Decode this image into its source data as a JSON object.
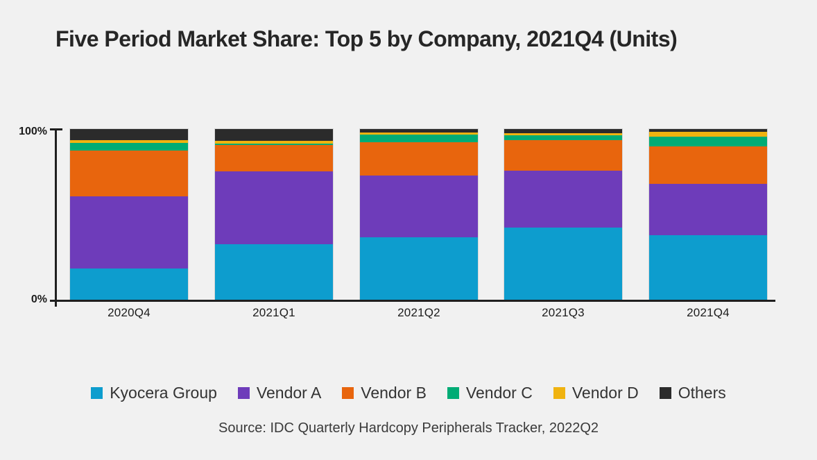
{
  "title": "Five Period Market Share: Top 5 by Company, 2021Q4 (Units)",
  "source": "Source: IDC Quarterly Hardcopy Peripherals Tracker, 2022Q2",
  "colors": {
    "background": "#f1f1f1",
    "axis": "#1f1f1f",
    "title_text": "#262626",
    "kyocera_blue": "#0d9dce",
    "vendor_a_purple": "#6e3cba",
    "vendor_b_orange": "#e8650d",
    "vendor_c_green": "#00ac75",
    "vendor_d_yellow": "#f0b310",
    "others_black": "#2b2b2b"
  },
  "chart_data": {
    "type": "bar",
    "stacked": true,
    "title": "Five Period Market Share: Top 5 by Company, 2021Q4 (Units)",
    "categories": [
      "2020Q4",
      "2021Q1",
      "2021Q2",
      "2021Q3",
      "2021Q4"
    ],
    "series": [
      {
        "name": "Kyocera Group",
        "color": "#0d9dce",
        "values": [
          18.6,
          32.6,
          36.8,
          42.4,
          37.9
        ]
      },
      {
        "name": "Vendor A",
        "color": "#6e3cba",
        "values": [
          42.0,
          42.5,
          36.0,
          33.3,
          30.1
        ]
      },
      {
        "name": "Vendor B",
        "color": "#e8650d",
        "values": [
          26.7,
          15.4,
          19.5,
          18.0,
          21.9
        ]
      },
      {
        "name": "Vendor C",
        "color": "#00ac75",
        "values": [
          4.6,
          0.8,
          4.4,
          2.7,
          5.5
        ]
      },
      {
        "name": "Vendor D",
        "color": "#f0b310",
        "values": [
          1.5,
          1.9,
          1.1,
          1.1,
          3.0
        ]
      },
      {
        "name": "Others",
        "color": "#2b2b2b",
        "values": [
          6.6,
          6.8,
          2.2,
          2.5,
          1.6
        ]
      }
    ],
    "xlabel": "",
    "ylabel": "",
    "ylim": [
      0,
      100
    ],
    "y_ticks": [
      "100%",
      "0%"
    ],
    "grid": false,
    "legend_position": "bottom"
  }
}
